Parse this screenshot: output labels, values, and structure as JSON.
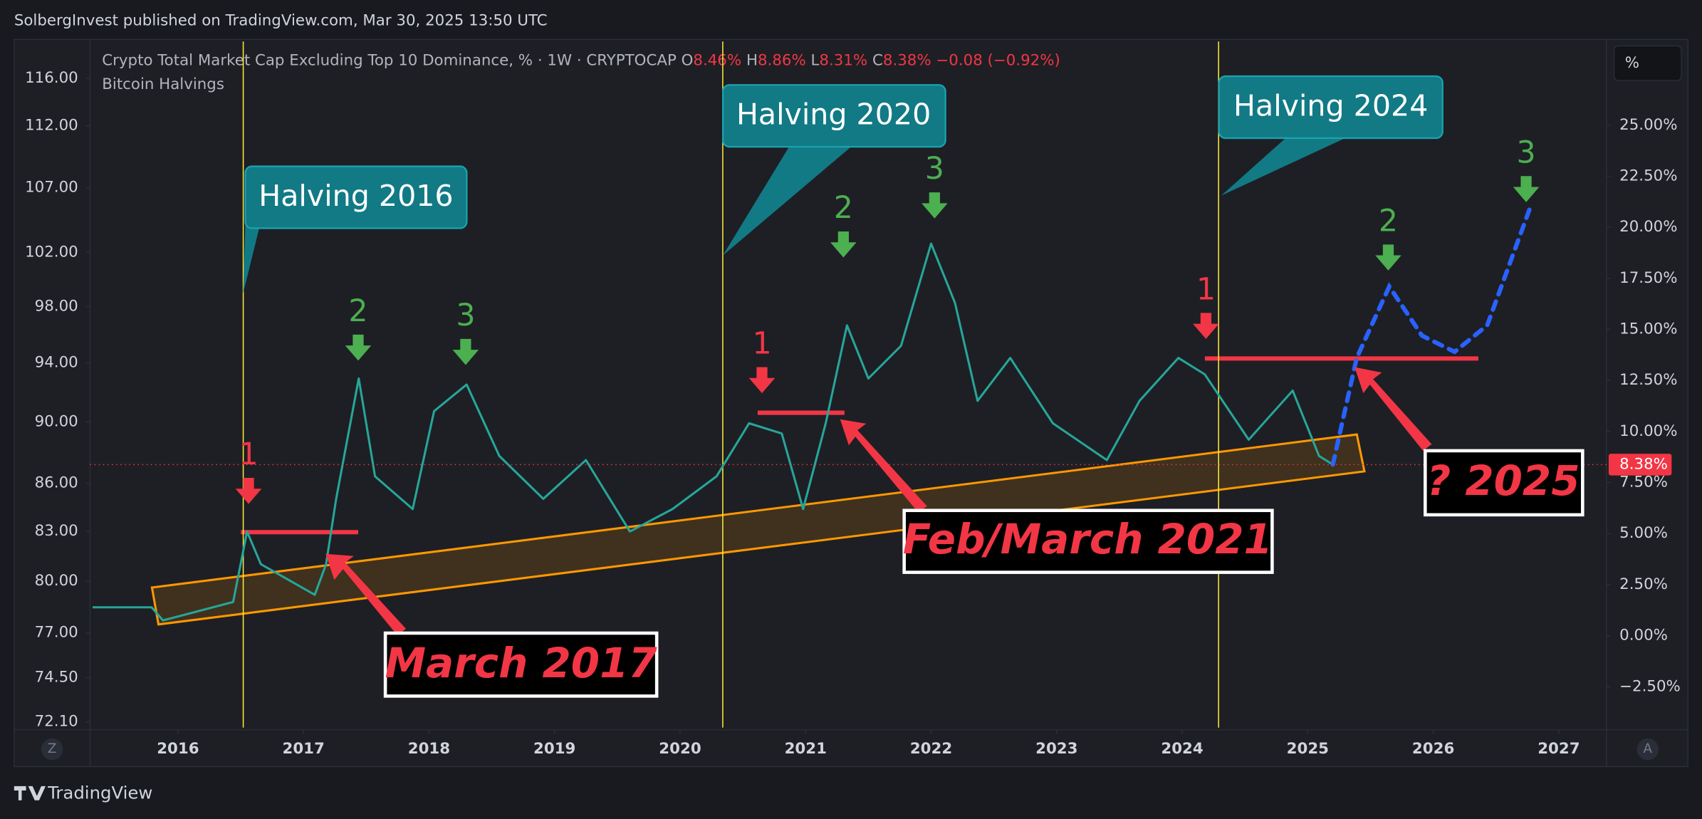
{
  "header": {
    "text": "SolbergInvest published on TradingView.com, Mar 30, 2025 13:50 UTC"
  },
  "legend": {
    "title": "Crypto Total Market Cap Excluding Top 10 Dominance, % · 1W · CRYPTOCAP",
    "o_key": "O",
    "o": "8.46%",
    "h_key": "H",
    "h": "8.86%",
    "l_key": "L",
    "l": "8.31%",
    "c_key": "C",
    "c": "8.38%",
    "change": "−0.08 (−0.92%)",
    "indicator": "Bitcoin Halvings"
  },
  "toolbar": {
    "scale_unit": "%",
    "left_button": "Z",
    "right_button": "A"
  },
  "footer": {
    "brand": "TradingView"
  },
  "chart_data": {
    "type": "line",
    "x": [
      2015.32,
      2015.79,
      2015.88,
      2016.44,
      2016.55,
      2016.66,
      2017.09,
      2017.18,
      2017.26,
      2017.44,
      2017.57,
      2017.87,
      2018.04,
      2018.3,
      2018.56,
      2018.91,
      2019.25,
      2019.6,
      2019.94,
      2020.29,
      2020.55,
      2020.81,
      2020.98,
      2021.16,
      2021.33,
      2021.5,
      2021.76,
      2022.0,
      2022.19,
      2022.37,
      2022.63,
      2022.97,
      2023.4,
      2023.66,
      2023.97,
      2024.18,
      2024.53,
      2024.88,
      2025.09,
      2025.2
    ],
    "series": [
      {
        "color": "#26a69a",
        "axis": "y2",
        "values": [
          1.39,
          1.39,
          0.75,
          1.65,
          5.1,
          3.5,
          2.0,
          3.5,
          6.7,
          12.6,
          7.8,
          6.2,
          11.0,
          12.3,
          8.8,
          6.7,
          8.6,
          5.1,
          6.2,
          7.8,
          10.4,
          9.9,
          6.2,
          10.4,
          15.2,
          12.6,
          14.2,
          19.2,
          16.3,
          11.5,
          13.6,
          10.4,
          8.6,
          11.5,
          13.6,
          12.8,
          9.6,
          12.0,
          8.8,
          8.38
        ]
      }
    ],
    "projection": {
      "color": "#2962ff",
      "dashed": true,
      "x": [
        2025.2,
        2025.39,
        2025.65,
        2025.91,
        2026.17,
        2026.43,
        2026.78
      ],
      "values": [
        8.38,
        13.6,
        17.1,
        14.7,
        13.9,
        15.2,
        21.1
      ]
    },
    "halvings": [
      2016.52,
      2020.34,
      2024.29
    ],
    "last_price": {
      "value": 8.38,
      "label": "8.38%"
    },
    "xlim": [
      2015.3,
      2027.38
    ],
    "xticks": [
      2016,
      2017,
      2018,
      2019,
      2020,
      2021,
      2022,
      2023,
      2024,
      2025,
      2026,
      2027
    ],
    "ylim": [
      71.8,
      119.2
    ],
    "ylog": true,
    "yticks": [
      {
        "value": 116,
        "label": "116.00"
      },
      {
        "value": 112,
        "label": "112.00"
      },
      {
        "value": 107,
        "label": "107.00"
      },
      {
        "value": 102,
        "label": "102.00"
      },
      {
        "value": 98,
        "label": "98.00"
      },
      {
        "value": 94,
        "label": "94.00"
      },
      {
        "value": 90,
        "label": "90.00"
      },
      {
        "value": 86,
        "label": "86.00"
      },
      {
        "value": 83,
        "label": "83.00"
      },
      {
        "value": 80,
        "label": "80.00"
      },
      {
        "value": 77,
        "label": "77.00"
      },
      {
        "value": 74.5,
        "label": "74.50"
      },
      {
        "value": 72.1,
        "label": "72.10"
      }
    ],
    "y2lim": [
      -4.5,
      29.1
    ],
    "y2ticks": [
      {
        "value": -2.5,
        "label": "−2.50%"
      },
      {
        "value": 0,
        "label": "0.00%"
      },
      {
        "value": 2.5,
        "label": "2.50%"
      },
      {
        "value": 5,
        "label": "5.00%"
      },
      {
        "value": 7.5,
        "label": "7.50%"
      },
      {
        "value": 10,
        "label": "10.00%"
      },
      {
        "value": 12.5,
        "label": "12.50%"
      },
      {
        "value": 15,
        "label": "15.00%"
      },
      {
        "value": 17.5,
        "label": "17.50%"
      },
      {
        "value": 20,
        "label": "20.00%"
      },
      {
        "value": 22.5,
        "label": "22.50%"
      },
      {
        "value": 25,
        "label": "25.00%"
      }
    ],
    "callouts": [
      "Halving 2016",
      "Halving 2020",
      "Halving 2024"
    ],
    "labels": [
      "March 2017",
      "Feb/March 2021",
      "? 2025"
    ],
    "waves": [
      "1",
      "2",
      "3",
      "1",
      "2",
      "3",
      "1",
      "2",
      "3"
    ]
  }
}
